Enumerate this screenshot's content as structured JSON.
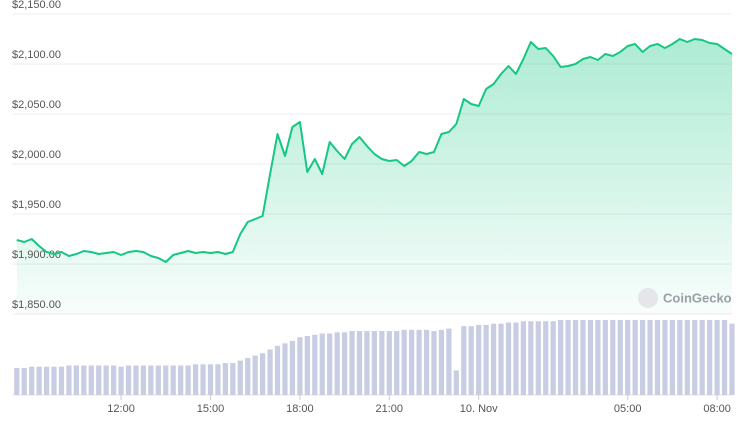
{
  "chart_data": {
    "type": "line",
    "watermark": "CoinGecko",
    "x": [
      8.5,
      8.75,
      9,
      9.25,
      9.5,
      9.75,
      10,
      10.25,
      10.5,
      10.75,
      11,
      11.25,
      11.5,
      11.75,
      12,
      12.25,
      12.5,
      12.75,
      13,
      13.25,
      13.5,
      13.75,
      14,
      14.25,
      14.5,
      14.75,
      15,
      15.25,
      15.5,
      15.75,
      16,
      16.25,
      16.5,
      16.75,
      17,
      17.25,
      17.5,
      17.75,
      18,
      18.25,
      18.5,
      18.75,
      19,
      19.25,
      19.5,
      19.75,
      20,
      20.25,
      20.5,
      20.75,
      21,
      21.25,
      21.5,
      21.75,
      22,
      22.25,
      22.5,
      22.75,
      23,
      23.25,
      23.5,
      23.75,
      24,
      24.25,
      24.5,
      24.75,
      25,
      25.25,
      25.5,
      25.75,
      26,
      26.25,
      26.5,
      26.75,
      27,
      27.25,
      27.5,
      27.75,
      28,
      28.25,
      28.5,
      28.75,
      29,
      29.25,
      29.5,
      29.75,
      30,
      30.25,
      30.5,
      30.75,
      31,
      31.25,
      31.5,
      31.75,
      32,
      32.25,
      32.5
    ],
    "series": [
      {
        "name": "Price",
        "color": "#16c784",
        "values": [
          1924,
          1922,
          1925,
          1918,
          1912,
          1910,
          1912,
          1908,
          1910,
          1913,
          1912,
          1910,
          1911,
          1912,
          1909,
          1912,
          1913,
          1912,
          1908,
          1906,
          1902,
          1909,
          1911,
          1913,
          1911,
          1912,
          1911,
          1912,
          1910,
          1912,
          1930,
          1942,
          1945,
          1948,
          1990,
          2030,
          2008,
          2037,
          2042,
          1992,
          2005,
          1990,
          2022,
          2013,
          2005,
          2020,
          2027,
          2018,
          2010,
          2005,
          2003,
          2004,
          1998,
          2003,
          2012,
          2010,
          2012,
          2030,
          2032,
          2040,
          2065,
          2060,
          2058,
          2075,
          2080,
          2090,
          2098,
          2090,
          2105,
          2122,
          2115,
          2116,
          2108,
          2097,
          2098,
          2100,
          2105,
          2107,
          2104,
          2110,
          2108,
          2112,
          2118,
          2120,
          2112,
          2118,
          2120,
          2116,
          2120,
          2125,
          2122,
          2125,
          2124,
          2121,
          2120,
          2115,
          2110
        ]
      },
      {
        "name": "Volume",
        "color": "#c9cde3",
        "values": [
          22,
          22,
          23,
          23,
          23,
          23,
          23,
          24,
          24,
          24,
          24,
          24,
          24,
          24,
          23,
          24,
          24,
          24,
          24,
          24,
          24,
          24,
          24,
          24,
          25,
          25,
          25,
          25,
          26,
          26,
          28,
          30,
          32,
          34,
          37,
          40,
          42,
          44,
          47,
          48,
          49,
          50,
          50,
          51,
          51,
          52,
          52,
          52,
          52,
          52,
          52,
          52,
          53,
          53,
          53,
          53,
          52,
          53,
          54,
          20,
          56,
          56,
          57,
          57,
          58,
          58,
          59,
          59,
          60,
          60,
          60,
          60,
          60,
          61,
          61,
          61,
          61,
          61,
          61,
          61,
          61,
          61,
          61,
          61,
          61,
          61,
          61,
          61,
          61,
          61,
          61,
          61,
          61,
          61,
          61,
          61,
          58
        ]
      }
    ],
    "xlim": [
      8.34,
      32.5
    ],
    "xticks": [
      {
        "value": 12,
        "label": "12:00"
      },
      {
        "value": 15,
        "label": "15:00"
      },
      {
        "value": 18,
        "label": "18:00"
      },
      {
        "value": 21,
        "label": "21:00"
      },
      {
        "value": 24,
        "label": "10. Nov"
      },
      {
        "value": 29,
        "label": "05:00"
      },
      {
        "value": 32,
        "label": "08:00"
      }
    ],
    "ylim": [
      1850,
      2150
    ],
    "yticks": [
      {
        "value": 2150,
        "label": "$2,150.00"
      },
      {
        "value": 2100,
        "label": "$2,100.00"
      },
      {
        "value": 2050,
        "label": "$2,050.00"
      },
      {
        "value": 2000,
        "label": "$2,000.00"
      },
      {
        "value": 1950,
        "label": "$1,950.00"
      },
      {
        "value": 1900,
        "label": "$1,900.00"
      },
      {
        "value": 1850,
        "label": "$1,850.00"
      }
    ],
    "grid": true
  }
}
